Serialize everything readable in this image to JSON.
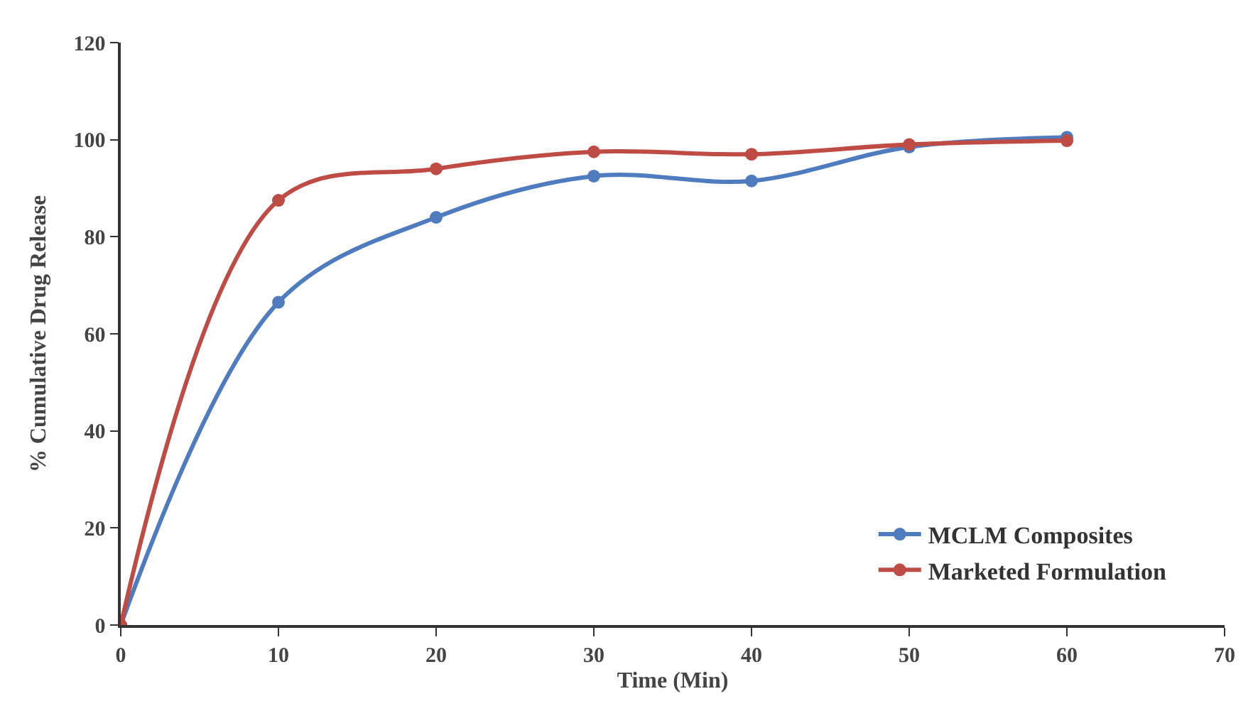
{
  "chart_data": {
    "type": "line",
    "xlabel": "Time (Min)",
    "ylabel": "% Cumulative Drug Release",
    "x": [
      0,
      10,
      20,
      30,
      40,
      50,
      60
    ],
    "series": [
      {
        "name": "MCLM Composites",
        "color": "#4f7bbf",
        "values": [
          0,
          66.5,
          84,
          92.5,
          91.5,
          98.5,
          100.5
        ]
      },
      {
        "name": "Marketed Formulation",
        "color": "#bf4b45",
        "values": [
          0,
          87.5,
          94,
          97.5,
          97,
          99,
          99.8
        ]
      }
    ],
    "xlim": [
      0,
      70
    ],
    "xticks": [
      0,
      10,
      20,
      30,
      40,
      50,
      60,
      70
    ],
    "ylim": [
      0,
      120
    ],
    "yticks": [
      0,
      20,
      40,
      60,
      80,
      100,
      120
    ],
    "legend": "bottom right",
    "marker": "circle",
    "line_style": "solid"
  }
}
